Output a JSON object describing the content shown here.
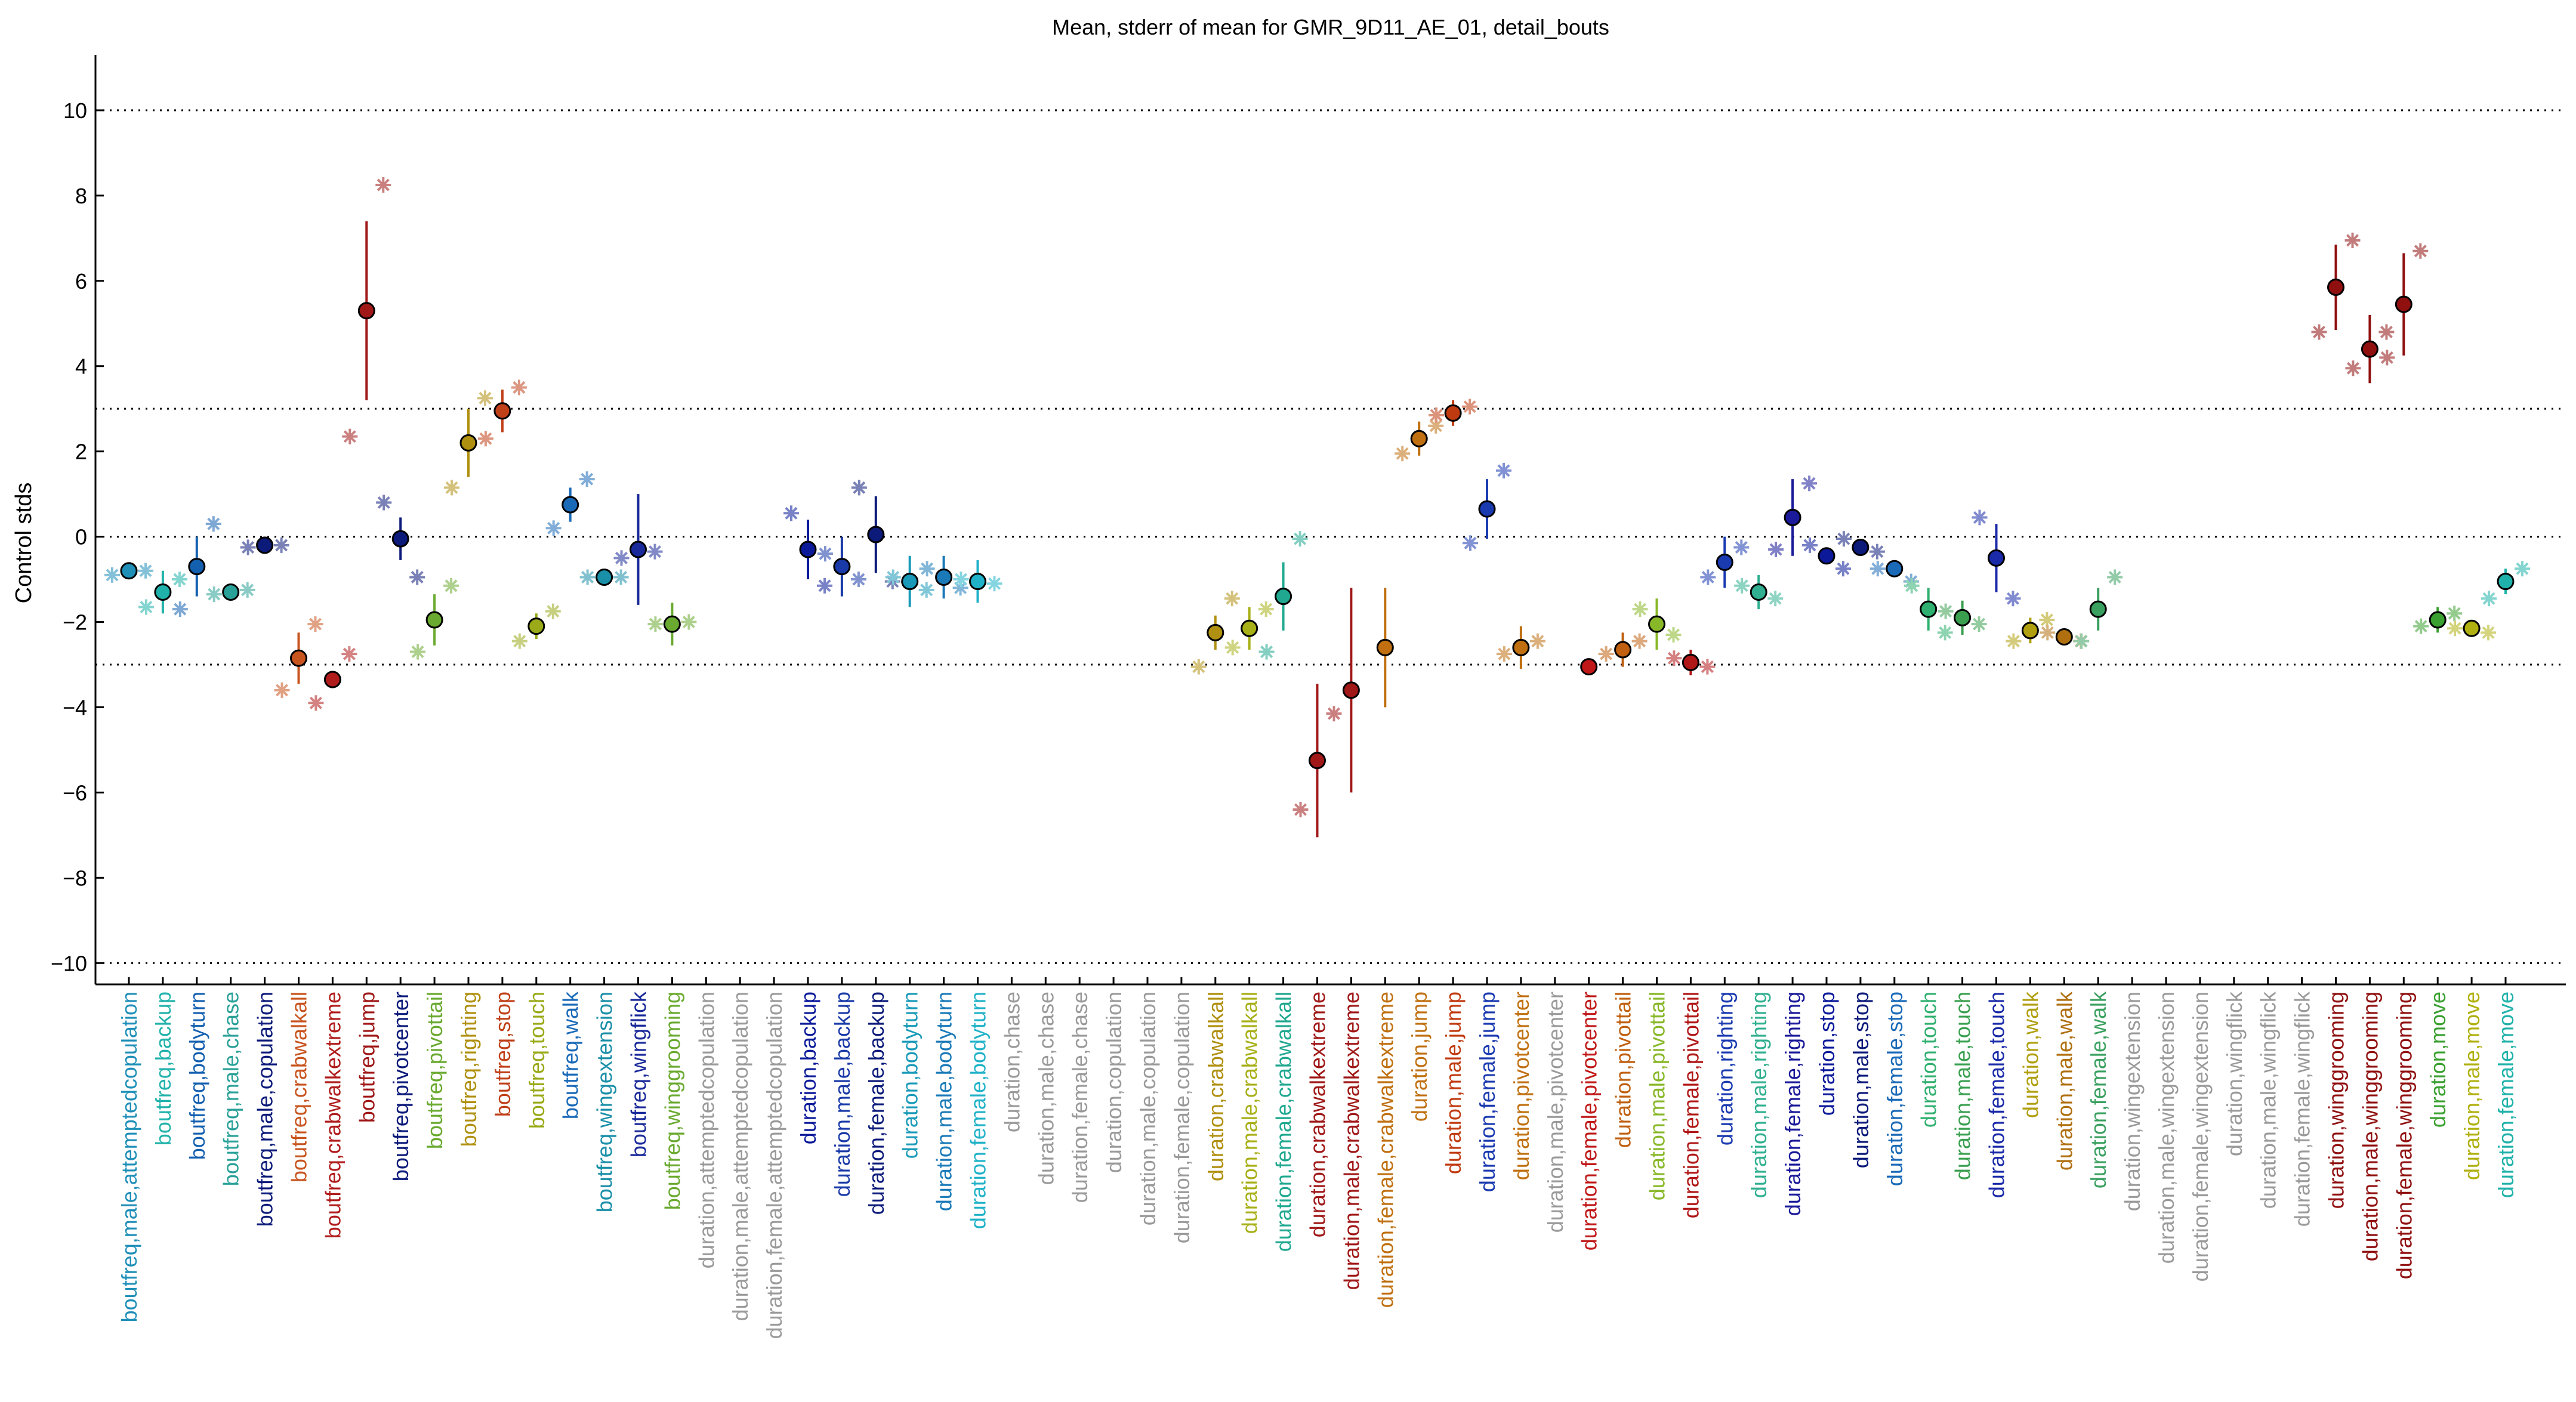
{
  "chart_data": {
    "type": "scatter",
    "title": "Mean, stderr of mean for GMR_9D11_AE_01, detail_bouts",
    "ylabel": "Control stds",
    "xlabel": "",
    "ylim": [
      -10.5,
      11.3
    ],
    "yticks": [
      -10,
      -8,
      -6,
      -4,
      -2,
      0,
      2,
      4,
      6,
      8,
      10
    ],
    "reference_lines": [
      -10,
      -3,
      0,
      3,
      10
    ],
    "grid": false,
    "categories": [
      "boutfreq,male,attemptedcopulation",
      "boutfreq,backup",
      "boutfreq,bodyturn",
      "boutfreq,male,chase",
      "boutfreq,male,copulation",
      "boutfreq,crabwalkall",
      "boutfreq,crabwalkextreme",
      "boutfreq,jump",
      "boutfreq,pivotcenter",
      "boutfreq,pivottail",
      "boutfreq,righting",
      "boutfreq,stop",
      "boutfreq,touch",
      "boutfreq,walk",
      "boutfreq,wingextension",
      "boutfreq,wingflick",
      "boutfreq,winggrooming",
      "duration,attemptedcopulation",
      "duration,male,attemptedcopulation",
      "duration,female,attemptedcopulation",
      "duration,backup",
      "duration,male,backup",
      "duration,female,backup",
      "duration,bodyturn",
      "duration,male,bodyturn",
      "duration,female,bodyturn",
      "duration,chase",
      "duration,male,chase",
      "duration,female,chase",
      "duration,copulation",
      "duration,male,copulation",
      "duration,female,copulation",
      "duration,crabwalkall",
      "duration,male,crabwalkall",
      "duration,female,crabwalkall",
      "duration,crabwalkextreme",
      "duration,male,crabwalkextreme",
      "duration,female,crabwalkextreme",
      "duration,jump",
      "duration,male,jump",
      "duration,female,jump",
      "duration,pivotcenter",
      "duration,male,pivotcenter",
      "duration,female,pivotcenter",
      "duration,pivottail",
      "duration,male,pivottail",
      "duration,female,pivottail",
      "duration,righting",
      "duration,male,righting",
      "duration,female,righting",
      "duration,stop",
      "duration,male,stop",
      "duration,female,stop",
      "duration,touch",
      "duration,male,touch",
      "duration,female,touch",
      "duration,walk",
      "duration,male,walk",
      "duration,female,walk",
      "duration,wingextension",
      "duration,male,wingextension",
      "duration,female,wingextension",
      "duration,wingflick",
      "duration,male,wingflick",
      "duration,female,wingflick",
      "duration,winggrooming",
      "duration,male,winggrooming",
      "duration,female,winggrooming",
      "duration,move",
      "duration,male,move",
      "duration,female,move"
    ],
    "label_colors": [
      "#1f8fb8",
      "#20b2aa",
      "#1460b0",
      "#2aa198",
      "#0c1a7a",
      "#c8541e",
      "#b01c1c",
      "#a01818",
      "#0c1a7a",
      "#6aaa30",
      "#b09010",
      "#c0401a",
      "#9aaa18",
      "#1a6ab8",
      "#1a8fa8",
      "#1a2a9a",
      "#6aaa30",
      "#9a9a9a",
      "#9a9a9a",
      "#9a9a9a",
      "#0c1a9a",
      "#1a3aa8",
      "#0c1a7a",
      "#1a9ab8",
      "#1a7ab8",
      "#20b2c8",
      "#9a9a9a",
      "#9a9a9a",
      "#9a9a9a",
      "#9a9a9a",
      "#9a9a9a",
      "#9a9a9a",
      "#b09010",
      "#a8b018",
      "#20a890",
      "#a01818",
      "#a01818",
      "#c07010",
      "#c07010",
      "#c03a10",
      "#1a3ab0",
      "#c07010",
      "#9a9a9a",
      "#c01818",
      "#c06010",
      "#88b828",
      "#b01818",
      "#1a3ab0",
      "#30b090",
      "#1a1a9a",
      "#0c1a9a",
      "#0c1a7a",
      "#1a6ab8",
      "#30b070",
      "#3aa050",
      "#1a2aa8",
      "#b0a010",
      "#b07010",
      "#3aa060",
      "#9a9a9a",
      "#9a9a9a",
      "#9a9a9a",
      "#9a9a9a",
      "#9a9a9a",
      "#9a9a9a",
      "#901010",
      "#901010",
      "#901010",
      "#3aa030",
      "#b0b010",
      "#20b2aa"
    ],
    "series": [
      {
        "role": "mean with stderr",
        "points": [
          {
            "i": 0,
            "mean": -0.8,
            "err": 0.15
          },
          {
            "i": 1,
            "mean": -1.3,
            "err": 0.5
          },
          {
            "i": 2,
            "mean": -0.7,
            "err": 0.7
          },
          {
            "i": 3,
            "mean": -1.3,
            "err": 0.15
          },
          {
            "i": 4,
            "mean": -0.2,
            "err": 0.1
          },
          {
            "i": 5,
            "mean": -2.85,
            "err": 0.6
          },
          {
            "i": 6,
            "mean": -3.35,
            "err": 0.2
          },
          {
            "i": 7,
            "mean": 5.3,
            "err": 2.1
          },
          {
            "i": 8,
            "mean": -0.05,
            "err": 0.5
          },
          {
            "i": 9,
            "mean": -1.95,
            "err": 0.6
          },
          {
            "i": 10,
            "mean": 2.2,
            "err": 0.8
          },
          {
            "i": 11,
            "mean": 2.95,
            "err": 0.5
          },
          {
            "i": 12,
            "mean": -2.1,
            "err": 0.3
          },
          {
            "i": 13,
            "mean": 0.75,
            "err": 0.4
          },
          {
            "i": 14,
            "mean": -0.95,
            "err": 0.1
          },
          {
            "i": 15,
            "mean": -0.3,
            "err": 1.3
          },
          {
            "i": 16,
            "mean": -2.05,
            "err": 0.5
          },
          {
            "i": 20,
            "mean": -0.3,
            "err": 0.7
          },
          {
            "i": 21,
            "mean": -0.7,
            "err": 0.7
          },
          {
            "i": 22,
            "mean": 0.05,
            "err": 0.9
          },
          {
            "i": 23,
            "mean": -1.05,
            "err": 0.6
          },
          {
            "i": 24,
            "mean": -0.95,
            "err": 0.5
          },
          {
            "i": 25,
            "mean": -1.05,
            "err": 0.5
          },
          {
            "i": 32,
            "mean": -2.25,
            "err": 0.4
          },
          {
            "i": 33,
            "mean": -2.15,
            "err": 0.5
          },
          {
            "i": 34,
            "mean": -1.4,
            "err": 0.8
          },
          {
            "i": 35,
            "mean": -5.25,
            "err": 1.8
          },
          {
            "i": 36,
            "mean": -3.6,
            "err": 2.4
          },
          {
            "i": 37,
            "mean": -2.6,
            "err": 1.4
          },
          {
            "i": 38,
            "mean": 2.3,
            "err": 0.4
          },
          {
            "i": 39,
            "mean": 2.9,
            "err": 0.3
          },
          {
            "i": 40,
            "mean": 0.65,
            "err": 0.7
          },
          {
            "i": 41,
            "mean": -2.6,
            "err": 0.5
          },
          {
            "i": 43,
            "mean": -3.05,
            "err": 0.05
          },
          {
            "i": 44,
            "mean": -2.65,
            "err": 0.4
          },
          {
            "i": 45,
            "mean": -2.05,
            "err": 0.6
          },
          {
            "i": 46,
            "mean": -2.95,
            "err": 0.3
          },
          {
            "i": 47,
            "mean": -0.6,
            "err": 0.6
          },
          {
            "i": 48,
            "mean": -1.3,
            "err": 0.4
          },
          {
            "i": 49,
            "mean": 0.45,
            "err": 0.9
          },
          {
            "i": 50,
            "mean": -0.45,
            "err": 0.2
          },
          {
            "i": 51,
            "mean": -0.25,
            "err": 0.15
          },
          {
            "i": 52,
            "mean": -0.75,
            "err": 0.15
          },
          {
            "i": 53,
            "mean": -1.7,
            "err": 0.5
          },
          {
            "i": 54,
            "mean": -1.9,
            "err": 0.4
          },
          {
            "i": 55,
            "mean": -0.5,
            "err": 0.8
          },
          {
            "i": 56,
            "mean": -2.2,
            "err": 0.3
          },
          {
            "i": 57,
            "mean": -2.35,
            "err": 0.2
          },
          {
            "i": 58,
            "mean": -1.7,
            "err": 0.5
          },
          {
            "i": 65,
            "mean": 5.85,
            "err": 1.0
          },
          {
            "i": 66,
            "mean": 4.4,
            "err": 0.8
          },
          {
            "i": 67,
            "mean": 5.45,
            "err": 1.2
          },
          {
            "i": 68,
            "mean": -1.95,
            "err": 0.3
          },
          {
            "i": 69,
            "mean": -2.15,
            "err": 0.2
          },
          {
            "i": 70,
            "mean": -1.05,
            "err": 0.3
          }
        ]
      },
      {
        "role": "individual values (asterisks)",
        "points": [
          {
            "i": 0,
            "y": -0.9
          },
          {
            "i": 0,
            "y": -0.8
          },
          {
            "i": 1,
            "y": -1.65
          },
          {
            "i": 1,
            "y": -1.0
          },
          {
            "i": 2,
            "y": -1.7
          },
          {
            "i": 2,
            "y": 0.3
          },
          {
            "i": 3,
            "y": -1.35
          },
          {
            "i": 3,
            "y": -1.25
          },
          {
            "i": 4,
            "y": -0.25
          },
          {
            "i": 4,
            "y": -0.2
          },
          {
            "i": 5,
            "y": -3.6
          },
          {
            "i": 5,
            "y": -2.05
          },
          {
            "i": 6,
            "y": -3.9
          },
          {
            "i": 6,
            "y": -2.75
          },
          {
            "i": 7,
            "y": 2.35
          },
          {
            "i": 7,
            "y": 8.25
          },
          {
            "i": 8,
            "y": 0.8
          },
          {
            "i": 8,
            "y": -0.95
          },
          {
            "i": 9,
            "y": -2.7
          },
          {
            "i": 9,
            "y": -1.15
          },
          {
            "i": 10,
            "y": 1.15
          },
          {
            "i": 10,
            "y": 3.25
          },
          {
            "i": 11,
            "y": 2.3
          },
          {
            "i": 11,
            "y": 3.5
          },
          {
            "i": 12,
            "y": -2.45
          },
          {
            "i": 12,
            "y": -1.75
          },
          {
            "i": 13,
            "y": 0.2
          },
          {
            "i": 13,
            "y": 1.35
          },
          {
            "i": 14,
            "y": -0.95
          },
          {
            "i": 14,
            "y": -0.95
          },
          {
            "i": 15,
            "y": -0.5
          },
          {
            "i": 15,
            "y": -0.35
          },
          {
            "i": 16,
            "y": -2.05
          },
          {
            "i": 16,
            "y": -2.0
          },
          {
            "i": 20,
            "y": 0.55
          },
          {
            "i": 20,
            "y": -1.15
          },
          {
            "i": 21,
            "y": -0.4
          },
          {
            "i": 21,
            "y": -1.0
          },
          {
            "i": 22,
            "y": 1.15
          },
          {
            "i": 22,
            "y": -1.05
          },
          {
            "i": 23,
            "y": -0.95
          },
          {
            "i": 23,
            "y": -1.25
          },
          {
            "i": 24,
            "y": -0.75
          },
          {
            "i": 24,
            "y": -1.2
          },
          {
            "i": 25,
            "y": -1.0
          },
          {
            "i": 25,
            "y": -1.1
          },
          {
            "i": 32,
            "y": -3.05
          },
          {
            "i": 32,
            "y": -1.45
          },
          {
            "i": 33,
            "y": -2.6
          },
          {
            "i": 33,
            "y": -1.7
          },
          {
            "i": 34,
            "y": -2.7
          },
          {
            "i": 34,
            "y": -0.05
          },
          {
            "i": 35,
            "y": -6.4
          },
          {
            "i": 35,
            "y": -4.15
          },
          {
            "i": 38,
            "y": 1.95
          },
          {
            "i": 38,
            "y": 2.6
          },
          {
            "i": 39,
            "y": 2.85
          },
          {
            "i": 39,
            "y": 3.05
          },
          {
            "i": 40,
            "y": -0.15
          },
          {
            "i": 40,
            "y": 1.55
          },
          {
            "i": 41,
            "y": -2.75
          },
          {
            "i": 41,
            "y": -2.45
          },
          {
            "i": 44,
            "y": -2.75
          },
          {
            "i": 44,
            "y": -2.45
          },
          {
            "i": 45,
            "y": -1.7
          },
          {
            "i": 45,
            "y": -2.3
          },
          {
            "i": 46,
            "y": -2.85
          },
          {
            "i": 46,
            "y": -3.05
          },
          {
            "i": 47,
            "y": -0.95
          },
          {
            "i": 47,
            "y": -0.25
          },
          {
            "i": 48,
            "y": -1.15
          },
          {
            "i": 48,
            "y": -1.45
          },
          {
            "i": 49,
            "y": -0.3
          },
          {
            "i": 49,
            "y": 1.25
          },
          {
            "i": 50,
            "y": -0.2
          },
          {
            "i": 50,
            "y": -0.75
          },
          {
            "i": 51,
            "y": -0.05
          },
          {
            "i": 51,
            "y": -0.35
          },
          {
            "i": 52,
            "y": -0.75
          },
          {
            "i": 52,
            "y": -1.05
          },
          {
            "i": 53,
            "y": -1.15
          },
          {
            "i": 53,
            "y": -2.25
          },
          {
            "i": 54,
            "y": -1.75
          },
          {
            "i": 54,
            "y": -2.05
          },
          {
            "i": 55,
            "y": 0.45
          },
          {
            "i": 55,
            "y": -1.45
          },
          {
            "i": 56,
            "y": -2.45
          },
          {
            "i": 56,
            "y": -1.95
          },
          {
            "i": 57,
            "y": -2.25
          },
          {
            "i": 57,
            "y": -2.45
          },
          {
            "i": 58,
            "y": -2.45
          },
          {
            "i": 58,
            "y": -0.95
          },
          {
            "i": 65,
            "y": 4.8
          },
          {
            "i": 65,
            "y": 6.95
          },
          {
            "i": 66,
            "y": 3.95
          },
          {
            "i": 66,
            "y": 4.8
          },
          {
            "i": 67,
            "y": 4.2
          },
          {
            "i": 67,
            "y": 6.7
          },
          {
            "i": 68,
            "y": -2.1
          },
          {
            "i": 68,
            "y": -1.8
          },
          {
            "i": 69,
            "y": -2.15
          },
          {
            "i": 69,
            "y": -2.25
          },
          {
            "i": 70,
            "y": -1.45
          },
          {
            "i": 70,
            "y": -0.75
          }
        ]
      }
    ]
  }
}
